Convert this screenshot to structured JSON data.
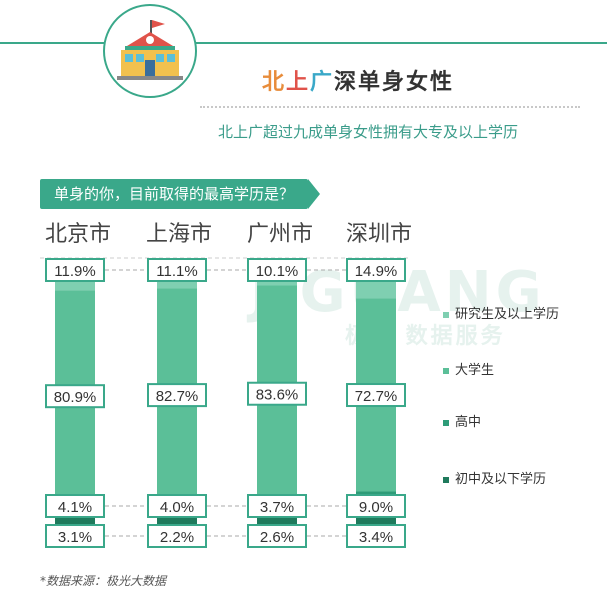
{
  "header": {
    "title_parts": [
      "北",
      "上",
      "广",
      "深单身女性"
    ],
    "subtitle": "北上广超过九成单身女性拥有大专及以上学历",
    "question": "单身的你，目前取得的最高学历是？",
    "source": "*数据来源：极光大数据",
    "watermark": "JIGUANG",
    "watermark_sub": "极光 数据服务"
  },
  "colors": {
    "accent": "#3aa88a",
    "seg_grad": "#7fcfb1",
    "seg_college": "#5bbf98",
    "seg_high": "#2e9c78",
    "seg_middle": "#1f7a5c"
  },
  "chart_data": {
    "type": "bar",
    "stacked": true,
    "categories": [
      "北京市",
      "上海市",
      "广州市",
      "深圳市"
    ],
    "series": [
      {
        "name": "研究生及以上学历",
        "values": [
          11.9,
          11.1,
          10.1,
          14.9
        ]
      },
      {
        "name": "大学生",
        "values": [
          80.9,
          82.7,
          83.6,
          72.7
        ]
      },
      {
        "name": "高中",
        "values": [
          4.1,
          4.0,
          3.7,
          9.0
        ]
      },
      {
        "name": "初中及以下学历",
        "values": [
          3.1,
          2.2,
          2.6,
          3.4
        ]
      }
    ],
    "labels": [
      [
        "11.9%",
        "11.1%",
        "10.1%",
        "14.9%"
      ],
      [
        "80.9%",
        "82.7%",
        "83.6%",
        "72.7%"
      ],
      [
        "4.1%",
        "4.0%",
        "3.7%",
        "9.0%"
      ],
      [
        "3.1%",
        "2.2%",
        "2.6%",
        "3.4%"
      ]
    ],
    "ylim": [
      0,
      100
    ],
    "legend_position": "right"
  }
}
